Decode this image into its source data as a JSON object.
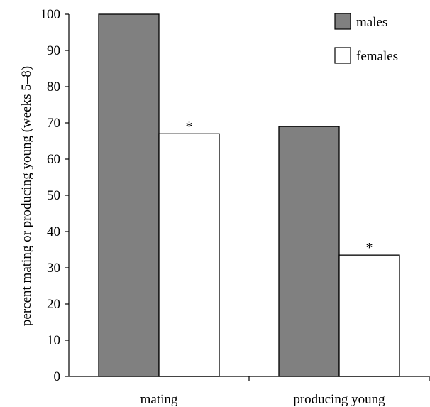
{
  "chart_data": {
    "type": "bar",
    "categories": [
      "mating",
      "producing young"
    ],
    "series": [
      {
        "name": "males",
        "values": [
          100,
          69
        ],
        "color": "#808080"
      },
      {
        "name": "females",
        "values": [
          67,
          33.5
        ],
        "color": "#ffffff"
      }
    ],
    "annotations": [
      {
        "category": "mating",
        "series": "females",
        "text": "*"
      },
      {
        "category": "producing young",
        "series": "females",
        "text": "*"
      }
    ],
    "ylabel": "percent mating or producing young (weeks 5–8)",
    "xlabel": "",
    "ylim": [
      0,
      100
    ],
    "yticks": [
      "0",
      "10",
      "20",
      "30",
      "40",
      "50",
      "60",
      "70",
      "80",
      "90",
      "100"
    ],
    "grid": false,
    "legend": "top-right"
  }
}
